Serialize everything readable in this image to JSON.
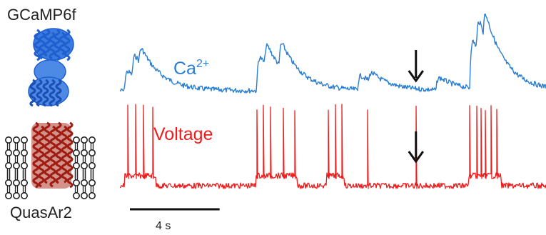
{
  "figure": {
    "protein_top_label": "GCaMP6f",
    "protein_bottom_label": "QuasAr2",
    "scale_bar_label": "4 s"
  },
  "colors": {
    "calcium": "#2a7fd4",
    "voltage": "#ee1c1c",
    "protein_top": "#1f5fcf",
    "protein_bottom": "#9e1d12",
    "membrane": "#222222",
    "text": "#222222"
  },
  "chart_data": {
    "type": "line",
    "title": "",
    "xlabel": "",
    "ylabel": "",
    "duration_s": 19,
    "scale_bar_s": 4,
    "series": [
      {
        "name": "Ca2+",
        "label_base": "Ca",
        "label_sup": "2+",
        "events": [
          {
            "t": 0.2,
            "amp": 0.55
          },
          {
            "t": 0.55,
            "amp": 0.6
          },
          {
            "t": 0.85,
            "amp": 0.45
          },
          {
            "t": 6.1,
            "amp": 0.95
          },
          {
            "t": 6.45,
            "amp": 0.6
          },
          {
            "t": 7.1,
            "amp": 0.7
          },
          {
            "t": 10.6,
            "amp": 0.4
          },
          {
            "t": 11.1,
            "amp": 0.25
          },
          {
            "t": 14.1,
            "amp": 0.35
          },
          {
            "t": 15.6,
            "amp": 1.35
          },
          {
            "t": 15.9,
            "amp": 0.9
          },
          {
            "t": 16.2,
            "amp": 0.7
          }
        ],
        "annotation_t": 13.2
      },
      {
        "name": "Voltage",
        "label_base": "Voltage",
        "spikes": [
          0.35,
          0.7,
          1.05,
          1.45,
          6.1,
          6.4,
          6.7,
          7.3,
          7.8,
          9.3,
          9.6,
          9.9,
          11.05,
          13.2,
          15.6,
          15.9,
          16.1,
          16.3,
          16.55,
          16.8
        ],
        "plateaus": [
          [
            0.2,
            1.6
          ],
          [
            6.05,
            7.9
          ],
          [
            9.2,
            10.0
          ],
          [
            15.55,
            17.0
          ]
        ],
        "annotation_t": 13.2
      }
    ]
  }
}
